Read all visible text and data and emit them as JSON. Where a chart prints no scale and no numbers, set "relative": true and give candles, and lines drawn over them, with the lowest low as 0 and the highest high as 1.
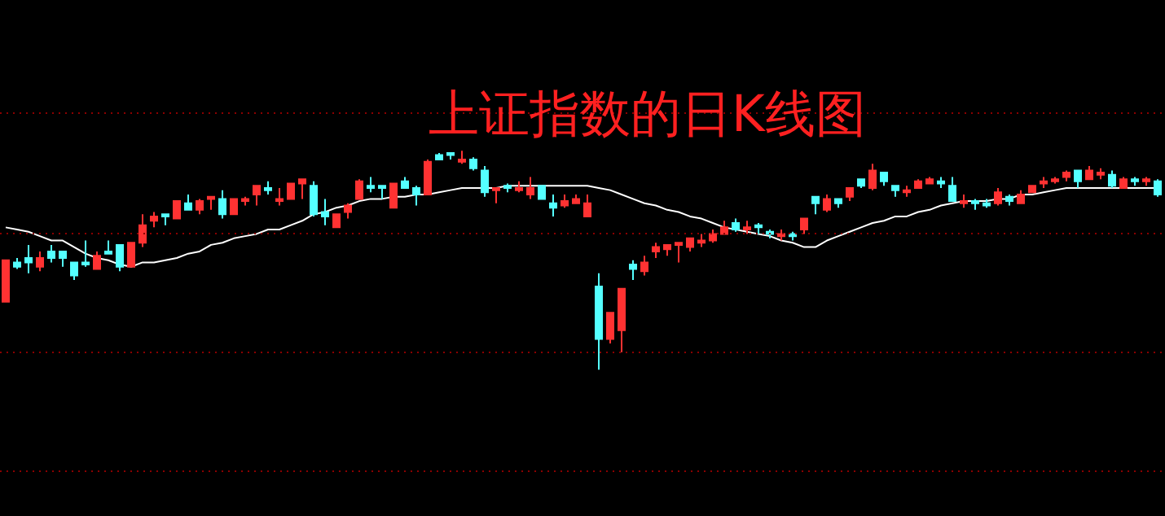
{
  "chart_data": {
    "type": "candlestick",
    "title": "上证指数的日K线图",
    "relative": true,
    "marker": "none",
    "ref_lines": [
      {
        "axis": "y",
        "value": 1.17,
        "color": "#8b0000",
        "line_style": "dotted"
      },
      {
        "axis": "y",
        "value": 0.62,
        "color": "#8b0000",
        "line_style": "dotted"
      },
      {
        "axis": "y",
        "value": 0.08,
        "color": "#8b0000",
        "line_style": "dotted"
      },
      {
        "axis": "y",
        "value": -0.46,
        "color": "#8b0000",
        "line_style": "dotted"
      }
    ],
    "categories": [
      null,
      null,
      null,
      null,
      null,
      null,
      null,
      null,
      null,
      null,
      null,
      null,
      null,
      null,
      null,
      null,
      null,
      null,
      null,
      null,
      null,
      null,
      null,
      null,
      null,
      null,
      null,
      null,
      null,
      null,
      null,
      null,
      null,
      null,
      null,
      null,
      null,
      null,
      null,
      null,
      null,
      null,
      null,
      null,
      null,
      null,
      null,
      null,
      null,
      null,
      null,
      null,
      null,
      null,
      null,
      null,
      null,
      null,
      null,
      null,
      null,
      null,
      null,
      null,
      null,
      null,
      null,
      null,
      null,
      null,
      null,
      null,
      null,
      null,
      null,
      null,
      null,
      null,
      null,
      null,
      null,
      null,
      null,
      null,
      null,
      null,
      null,
      null,
      null,
      null,
      null,
      null,
      null,
      null,
      null,
      null,
      null,
      null,
      null,
      null,
      null,
      null
    ],
    "series": [
      {
        "type": "candlestick",
        "ohlc": [
          [
            0.31,
            0.5,
            0.31,
            0.5
          ],
          [
            0.49,
            0.51,
            0.46,
            0.47
          ],
          [
            0.51,
            0.57,
            0.44,
            0.49
          ],
          [
            0.47,
            0.54,
            0.45,
            0.51
          ],
          [
            0.54,
            0.57,
            0.49,
            0.51
          ],
          [
            0.54,
            0.54,
            0.47,
            0.51
          ],
          [
            0.49,
            0.49,
            0.41,
            0.43
          ],
          [
            0.49,
            0.59,
            0.47,
            0.48
          ],
          [
            0.46,
            0.54,
            0.46,
            0.52
          ],
          [
            0.54,
            0.59,
            0.53,
            0.53
          ],
          [
            0.57,
            0.57,
            0.45,
            0.47
          ],
          [
            0.47,
            0.58,
            0.47,
            0.58
          ],
          [
            0.58,
            0.71,
            0.56,
            0.66
          ],
          [
            0.68,
            0.72,
            0.65,
            0.7
          ],
          [
            0.71,
            0.71,
            0.66,
            0.7
          ],
          [
            0.69,
            0.77,
            0.69,
            0.77
          ],
          [
            0.76,
            0.8,
            0.73,
            0.73
          ],
          [
            0.73,
            0.78,
            0.71,
            0.77
          ],
          [
            0.78,
            0.79,
            0.73,
            0.79
          ],
          [
            0.78,
            0.82,
            0.69,
            0.71
          ],
          [
            0.71,
            0.78,
            0.71,
            0.78
          ],
          [
            0.77,
            0.79,
            0.75,
            0.78
          ],
          [
            0.8,
            0.84,
            0.75,
            0.84
          ],
          [
            0.83,
            0.86,
            0.8,
            0.82
          ],
          [
            0.77,
            0.83,
            0.75,
            0.78
          ],
          [
            0.78,
            0.85,
            0.78,
            0.85
          ],
          [
            0.85,
            0.87,
            0.78,
            0.87
          ],
          [
            0.84,
            0.86,
            0.7,
            0.71
          ],
          [
            0.72,
            0.78,
            0.66,
            0.7
          ],
          [
            0.65,
            0.71,
            0.65,
            0.71
          ],
          [
            0.72,
            0.76,
            0.69,
            0.75
          ],
          [
            0.78,
            0.87,
            0.78,
            0.86
          ],
          [
            0.84,
            0.88,
            0.81,
            0.83
          ],
          [
            0.84,
            0.84,
            0.78,
            0.83
          ],
          [
            0.74,
            0.85,
            0.74,
            0.85
          ],
          [
            0.86,
            0.88,
            0.83,
            0.83
          ],
          [
            0.83,
            0.84,
            0.75,
            0.8
          ],
          [
            0.8,
            0.96,
            0.8,
            0.95
          ],
          [
            0.98,
            0.99,
            0.96,
            0.96
          ],
          [
            0.99,
            0.99,
            0.96,
            0.98
          ],
          [
            0.95,
            1.0,
            0.94,
            0.96
          ],
          [
            0.96,
            0.97,
            0.91,
            0.92
          ],
          [
            0.91,
            0.93,
            0.79,
            0.81
          ],
          [
            0.82,
            0.83,
            0.76,
            0.83
          ],
          [
            0.84,
            0.85,
            0.81,
            0.83
          ],
          [
            0.82,
            0.86,
            0.81,
            0.83
          ],
          [
            0.8,
            0.88,
            0.78,
            0.83
          ],
          [
            0.84,
            0.84,
            0.78,
            0.78
          ],
          [
            0.76,
            0.8,
            0.7,
            0.74
          ],
          [
            0.75,
            0.8,
            0.74,
            0.77
          ],
          [
            0.76,
            0.8,
            0.76,
            0.78
          ],
          [
            0.7,
            0.8,
            0.7,
            0.76
          ],
          [
            0.38,
            0.44,
            0.0,
            0.14
          ],
          [
            0.14,
            0.26,
            0.12,
            0.26
          ],
          [
            0.18,
            0.37,
            0.08,
            0.37
          ],
          [
            0.48,
            0.5,
            0.41,
            0.46
          ],
          [
            0.45,
            0.52,
            0.43,
            0.49
          ],
          [
            0.54,
            0.58,
            0.51,
            0.56
          ],
          [
            0.55,
            0.57,
            0.52,
            0.57
          ],
          [
            0.57,
            0.58,
            0.49,
            0.58
          ],
          [
            0.56,
            0.6,
            0.54,
            0.6
          ],
          [
            0.58,
            0.62,
            0.56,
            0.59
          ],
          [
            0.59,
            0.64,
            0.58,
            0.62
          ],
          [
            0.62,
            0.68,
            0.62,
            0.65
          ],
          [
            0.67,
            0.69,
            0.63,
            0.64
          ],
          [
            0.64,
            0.68,
            0.62,
            0.65
          ],
          [
            0.66,
            0.67,
            0.62,
            0.65
          ],
          [
            0.63,
            0.64,
            0.6,
            0.62
          ],
          [
            0.61,
            0.64,
            0.59,
            0.62
          ],
          [
            0.62,
            0.63,
            0.59,
            0.61
          ],
          [
            0.64,
            0.69,
            0.62,
            0.69
          ],
          [
            0.79,
            0.79,
            0.71,
            0.76
          ],
          [
            0.73,
            0.8,
            0.72,
            0.78
          ],
          [
            0.78,
            0.78,
            0.74,
            0.76
          ],
          [
            0.79,
            0.83,
            0.77,
            0.83
          ],
          [
            0.87,
            0.87,
            0.83,
            0.84
          ],
          [
            0.83,
            0.94,
            0.82,
            0.91
          ],
          [
            0.9,
            0.9,
            0.84,
            0.86
          ],
          [
            0.84,
            0.84,
            0.79,
            0.82
          ],
          [
            0.81,
            0.84,
            0.79,
            0.82
          ],
          [
            0.83,
            0.87,
            0.83,
            0.86
          ],
          [
            0.85,
            0.88,
            0.85,
            0.87
          ],
          [
            0.86,
            0.88,
            0.83,
            0.85
          ],
          [
            0.84,
            0.88,
            0.77,
            0.77
          ],
          [
            0.76,
            0.8,
            0.74,
            0.77
          ],
          [
            0.77,
            0.78,
            0.73,
            0.76
          ],
          [
            0.76,
            0.78,
            0.74,
            0.75
          ],
          [
            0.76,
            0.83,
            0.75,
            0.81
          ],
          [
            0.79,
            0.8,
            0.75,
            0.77
          ],
          [
            0.76,
            0.82,
            0.76,
            0.8
          ],
          [
            0.81,
            0.84,
            0.81,
            0.84
          ],
          [
            0.85,
            0.88,
            0.83,
            0.86
          ],
          [
            0.86,
            0.88,
            0.85,
            0.87
          ],
          [
            0.88,
            0.91,
            0.86,
            0.9
          ],
          [
            0.91,
            0.91,
            0.83,
            0.86
          ],
          [
            0.87,
            0.93,
            0.87,
            0.91
          ],
          [
            0.89,
            0.92,
            0.87,
            0.9
          ],
          [
            0.89,
            0.91,
            0.83,
            0.84
          ],
          [
            0.83,
            0.88,
            0.83,
            0.87
          ],
          [
            0.87,
            0.88,
            0.84,
            0.86
          ],
          [
            0.86,
            0.88,
            0.84,
            0.87
          ],
          [
            0.86,
            0.87,
            0.79,
            0.8
          ]
        ],
        "colors": [
          "#ff3232",
          "#54ffff",
          "#54ffff",
          "#ff3232",
          "#54ffff",
          "#54ffff",
          "#54ffff",
          "#54ffff",
          "#ff3232",
          "#54ffff",
          "#54ffff",
          "#ff3232",
          "#ff3232",
          "#ff3232",
          "#54ffff",
          "#ff3232",
          "#54ffff",
          "#ff3232",
          "#ff3232",
          "#54ffff",
          "#ff3232",
          "#ff3232",
          "#ff3232",
          "#54ffff",
          "#ff3232",
          "#ff3232",
          "#ff3232",
          "#54ffff",
          "#54ffff",
          "#ff3232",
          "#ff3232",
          "#ff3232",
          "#54ffff",
          "#54ffff",
          "#ff3232",
          "#54ffff",
          "#54ffff",
          "#ff3232",
          "#54ffff",
          "#54ffff",
          "#ff3232",
          "#54ffff",
          "#54ffff",
          "#ff3232",
          "#54ffff",
          "#ff3232",
          "#ff3232",
          "#54ffff",
          "#54ffff",
          "#ff3232",
          "#ff3232",
          "#ff3232",
          "#54ffff",
          "#ff3232",
          "#ff3232",
          "#54ffff",
          "#ff3232",
          "#ff3232",
          "#ff3232",
          "#ff3232",
          "#ff3232",
          "#ff3232",
          "#ff3232",
          "#ff3232",
          "#54ffff",
          "#ff3232",
          "#54ffff",
          "#54ffff",
          "#ff3232",
          "#54ffff",
          "#ff3232",
          "#54ffff",
          "#ff3232",
          "#54ffff",
          "#ff3232",
          "#54ffff",
          "#ff3232",
          "#54ffff",
          "#54ffff",
          "#ff3232",
          "#ff3232",
          "#ff3232",
          "#54ffff",
          "#54ffff",
          "#ff3232",
          "#54ffff",
          "#54ffff",
          "#ff3232",
          "#54ffff",
          "#ff3232",
          "#ff3232",
          "#ff3232",
          "#ff3232",
          "#ff3232",
          "#54ffff",
          "#ff3232",
          "#ff3232",
          "#54ffff",
          "#ff3232",
          "#54ffff",
          "#ff3232",
          "#54ffff"
        ]
      },
      {
        "type": "line",
        "color": "#ffffff",
        "values": [
          0.65,
          0.64,
          0.63,
          0.61,
          0.59,
          0.59,
          0.56,
          0.53,
          0.51,
          0.5,
          0.48,
          0.47,
          0.49,
          0.49,
          0.5,
          0.51,
          0.53,
          0.54,
          0.57,
          0.58,
          0.6,
          0.61,
          0.62,
          0.64,
          0.64,
          0.66,
          0.68,
          0.71,
          0.72,
          0.74,
          0.75,
          0.77,
          0.78,
          0.78,
          0.79,
          0.79,
          0.8,
          0.8,
          0.81,
          0.82,
          0.83,
          0.83,
          0.83,
          0.83,
          0.84,
          0.84,
          0.84,
          0.84,
          0.84,
          0.84,
          0.84,
          0.84,
          0.83,
          0.82,
          0.8,
          0.78,
          0.76,
          0.75,
          0.73,
          0.72,
          0.7,
          0.69,
          0.67,
          0.65,
          0.64,
          0.63,
          0.62,
          0.61,
          0.59,
          0.58,
          0.56,
          0.56,
          0.59,
          0.61,
          0.63,
          0.65,
          0.67,
          0.68,
          0.7,
          0.7,
          0.72,
          0.73,
          0.75,
          0.76,
          0.77,
          0.77,
          0.77,
          0.78,
          0.78,
          0.8,
          0.8,
          0.81,
          0.82,
          0.83,
          0.83,
          0.83,
          0.83,
          0.83,
          0.83,
          0.83,
          0.83,
          0.83
        ]
      }
    ]
  }
}
